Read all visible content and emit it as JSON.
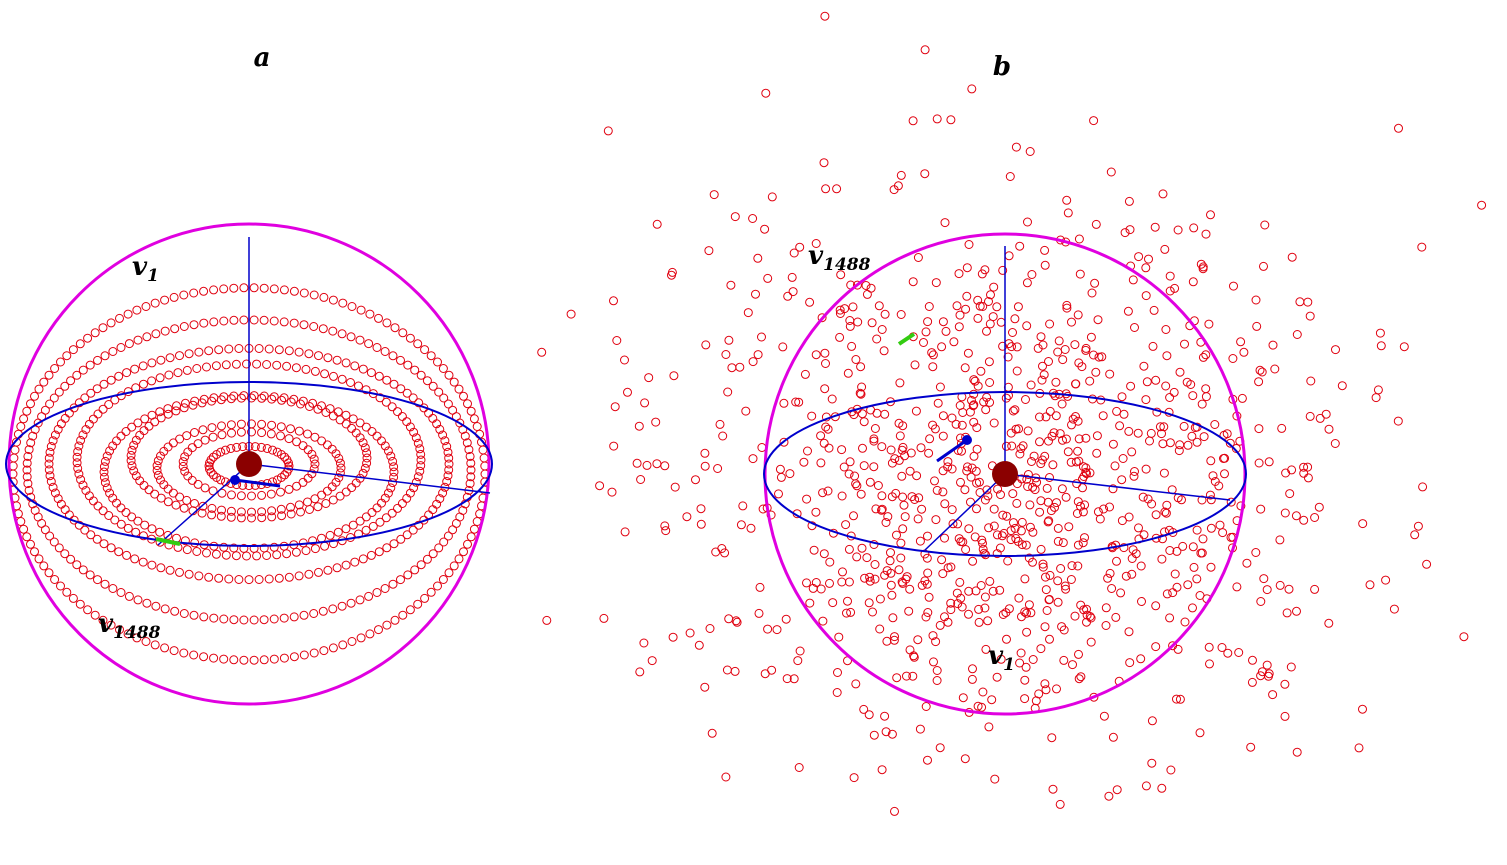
{
  "panels": [
    {
      "id": "a",
      "label": "a",
      "start_label": {
        "v": "v",
        "sub": "1"
      },
      "end_label": {
        "v": "v",
        "sub": "1488"
      }
    },
    {
      "id": "b",
      "label": "b",
      "start_label": {
        "v": "v",
        "sub": "1"
      },
      "end_label": {
        "v": "v",
        "sub": "1488"
      }
    }
  ],
  "colors": {
    "points": "#e0000f",
    "sphere": "#e000e0",
    "axes": "#0000cc",
    "center": "#8b0000",
    "endpoint_marker": "#33cc11",
    "background": "#ffffff"
  },
  "point_count": 1488
}
